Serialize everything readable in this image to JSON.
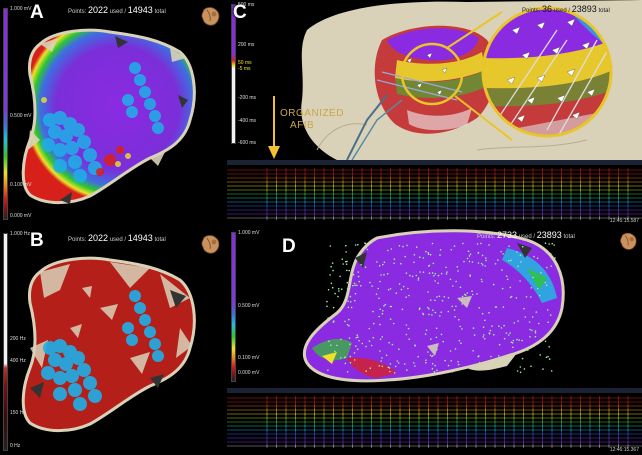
{
  "panels": {
    "a": {
      "letter": "A",
      "points_prefix": "Points:",
      "points_used": "2022",
      "used_label": "used /",
      "points_total": "14943",
      "total_label": "total",
      "scale": {
        "top": "1.000 mV",
        "mid": "0.500 mV",
        "low": "0.100 mV",
        "bottom": "0.000 mV"
      }
    },
    "b": {
      "letter": "B",
      "points_prefix": "Points:",
      "points_used": "2022",
      "used_label": "used /",
      "points_total": "14943",
      "total_label": "total",
      "scale": {
        "top": "1.000 Hz",
        "mid": "200 Hz",
        "mid2": "400 Hz",
        "low": "150 Hz",
        "bottom": "0 Hz"
      }
    },
    "c": {
      "letter": "C",
      "points_prefix": "Points:",
      "points_used": "36",
      "used_label": "used /",
      "points_total": "23893",
      "total_label": "total",
      "annotation_line1": "ORGANIZED",
      "annotation_line2": "AFIB",
      "scale": {
        "top": "500 ms",
        "t1": "200 ms",
        "t2": "50 ms",
        "t3": "-5 ms",
        "t4": "-200 ms",
        "t5": "-400 ms",
        "bottom": "-600 ms"
      },
      "egm_time": "12:45:15.587"
    },
    "d": {
      "letter": "D",
      "points_prefix": "Points:",
      "points_used": "2733",
      "used_label": "used /",
      "points_total": "23893",
      "total_label": "total",
      "scale": {
        "top": "1.000 mV",
        "mid": "0.500 mV",
        "low": "0.100 mV",
        "bottom": "0.000 mV"
      },
      "egm_time": "12:46:15.367"
    }
  },
  "colors": {
    "purple": "#8a2be2",
    "red": "#c0201a",
    "cyan": "#34b6e8",
    "anatomy": "#d9d2b8",
    "annotation": "#c9a64a"
  }
}
